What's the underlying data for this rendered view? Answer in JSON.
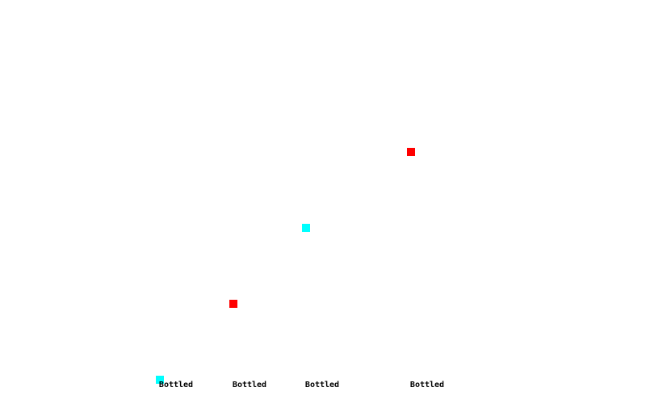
{
  "chart_data": {
    "type": "scatter",
    "title": "",
    "xlabel": "",
    "ylabel": "",
    "grid": false,
    "legend": "none",
    "tick_labels": [
      "Bottled",
      "Bottled",
      "Bottled",
      "Bottled"
    ],
    "ylim": [
      0,
      3
    ],
    "points": [
      {
        "x_index": 0,
        "y": 0,
        "color": "#00ffff"
      },
      {
        "x_index": 1,
        "y": 1,
        "color": "#ff0000"
      },
      {
        "x_index": 2,
        "y": 2,
        "color": "#00ffff"
      },
      {
        "x_index": 3,
        "y": 3,
        "color": "#ff0000"
      }
    ],
    "colors": {
      "cyan": "#00ffff",
      "red": "#ff0000"
    }
  }
}
